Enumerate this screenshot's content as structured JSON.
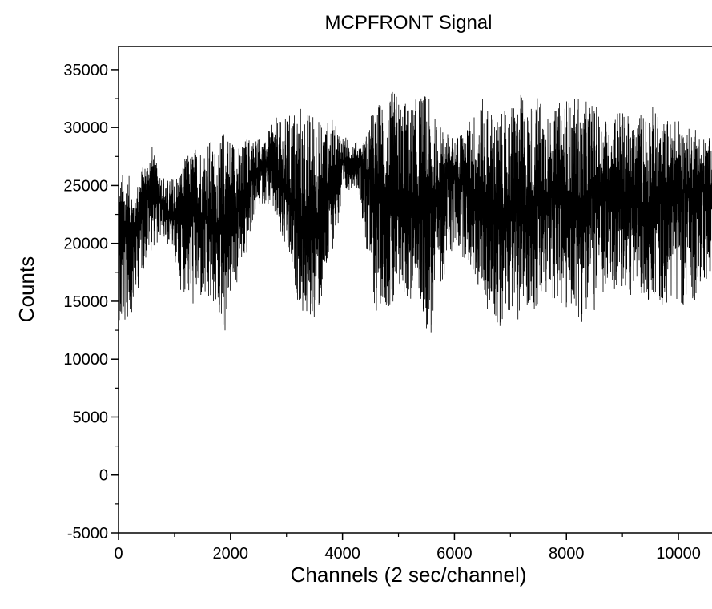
{
  "chart_data": {
    "type": "line",
    "title": "MCPFRONT Signal",
    "xlabel": "Channels (2 sec/channel)",
    "ylabel": "Counts",
    "xlim": [
      0,
      10600
    ],
    "ylim": [
      -5000,
      37000
    ],
    "x_ticks": [
      0,
      2000,
      4000,
      6000,
      8000,
      10000
    ],
    "y_ticks": [
      -5000,
      0,
      5000,
      10000,
      15000,
      20000,
      25000,
      30000,
      35000
    ],
    "grid": false,
    "line_color": "#000000",
    "series": [
      {
        "x": [
          0,
          100,
          200,
          300,
          400,
          500,
          600,
          700,
          800,
          900,
          1000,
          1100,
          1200,
          1300,
          1400,
          1500,
          1600,
          1700,
          1800,
          1900,
          2000,
          2100,
          2200,
          2300,
          2400,
          2500,
          2600,
          2700,
          2800,
          2900,
          3000,
          3100,
          3200,
          3300,
          3400,
          3500,
          3600,
          3700,
          3800,
          3900,
          4000,
          4100,
          4200,
          4300,
          4400,
          4500,
          4600,
          4700,
          4800,
          4900,
          5000,
          5100,
          5200,
          5300,
          5400,
          5500,
          5600,
          5700,
          5800,
          5900,
          6000,
          6100,
          6200,
          6300,
          6400,
          6500,
          6600,
          6700,
          6800,
          6900,
          7000,
          7100,
          7200,
          7300,
          7400,
          7500,
          7600,
          7700,
          7800,
          7900,
          8000,
          8100,
          8200,
          8300,
          8400,
          8500,
          8600,
          8700,
          8800,
          8900,
          9000,
          9100,
          9200,
          9300,
          9400,
          9500,
          9600,
          9700,
          9800,
          9900,
          10000,
          10100,
          10200,
          10300,
          10400,
          10500,
          10600
        ],
        "max": [
          26000,
          26200,
          25800,
          24500,
          26500,
          27000,
          28500,
          26500,
          26000,
          25500,
          26000,
          26500,
          27500,
          28000,
          28500,
          29000,
          29500,
          28500,
          29000,
          30500,
          29500,
          29000,
          28500,
          29500,
          29000,
          29500,
          28500,
          30000,
          31000,
          30500,
          31000,
          31500,
          32500,
          32000,
          31500,
          32000,
          31500,
          30500,
          31000,
          30000,
          29500,
          29000,
          29000,
          28500,
          29000,
          31000,
          32000,
          32500,
          31500,
          33500,
          33000,
          32500,
          32000,
          32500,
          33000,
          33300,
          31500,
          30500,
          30000,
          29500,
          29000,
          30000,
          30500,
          31000,
          32000,
          32500,
          32000,
          31500,
          31000,
          31500,
          32000,
          32500,
          33000,
          32000,
          32500,
          33000,
          32500,
          32000,
          31500,
          32500,
          33000,
          32000,
          33300,
          32000,
          32500,
          32000,
          31500,
          31000,
          31500,
          32000,
          31500,
          31000,
          30500,
          31500,
          32000,
          32300,
          31500,
          30500,
          31000,
          30500,
          31000,
          30000,
          30000,
          30500,
          29500,
          29000,
          29500
        ],
        "min": [
          11600,
          12500,
          13500,
          15000,
          17000,
          18500,
          19500,
          20000,
          20500,
          19500,
          18500,
          16000,
          15500,
          14000,
          15000,
          14500,
          14000,
          14500,
          13500,
          12000,
          15500,
          16000,
          17500,
          19000,
          22000,
          23000,
          23500,
          23000,
          22000,
          20000,
          19000,
          17000,
          15000,
          13500,
          13000,
          13500,
          14000,
          16500,
          19000,
          21000,
          23000,
          24500,
          25000,
          24500,
          20000,
          16500,
          13500,
          15000,
          14500,
          13000,
          15000,
          15500,
          14500,
          15000,
          14000,
          12500,
          11600,
          15500,
          17000,
          18500,
          19500,
          19000,
          18500,
          17500,
          16000,
          15500,
          14000,
          13500,
          12200,
          14500,
          14000,
          13500,
          13000,
          14500,
          14000,
          13500,
          14500,
          15500,
          15000,
          14000,
          13500,
          14500,
          13800,
          12900,
          13500,
          14000,
          14500,
          15000,
          15500,
          16000,
          15500,
          15000,
          15800,
          15000,
          14500,
          15500,
          15000,
          14000,
          15000,
          14500,
          15500,
          14200,
          14500,
          15000,
          15500,
          16000,
          16500
        ],
        "base": [
          20000,
          20800,
          20500,
          21500,
          23000,
          24500,
          25000,
          24000,
          23500,
          22500,
          22000,
          22500,
          23000,
          23500,
          23000,
          22500,
          22000,
          21500,
          21500,
          22000,
          22500,
          23000,
          23500,
          24000,
          26000,
          26500,
          27000,
          27000,
          26500,
          25500,
          24500,
          23500,
          22500,
          21500,
          21000,
          21500,
          22500,
          24000,
          25500,
          26500,
          27000,
          27000,
          27000,
          27000,
          26500,
          25500,
          24500,
          24000,
          23500,
          23000,
          23000,
          23500,
          24000,
          23500,
          23000,
          22500,
          23000,
          24500,
          25500,
          26000,
          26000,
          25500,
          25000,
          24500,
          24000,
          23500,
          23000,
          23000,
          22500,
          23000,
          23500,
          23000,
          22500,
          23000,
          23500,
          24000,
          24000,
          24500,
          24500,
          24000,
          24000,
          23500,
          23000,
          23500,
          24000,
          24500,
          24500,
          25000,
          25000,
          25000,
          24500,
          24000,
          23500,
          23000,
          23000,
          23500,
          24000,
          24000,
          24500,
          24500,
          25000,
          24500,
          24500,
          25000,
          25000,
          25000,
          25000
        ]
      }
    ]
  }
}
